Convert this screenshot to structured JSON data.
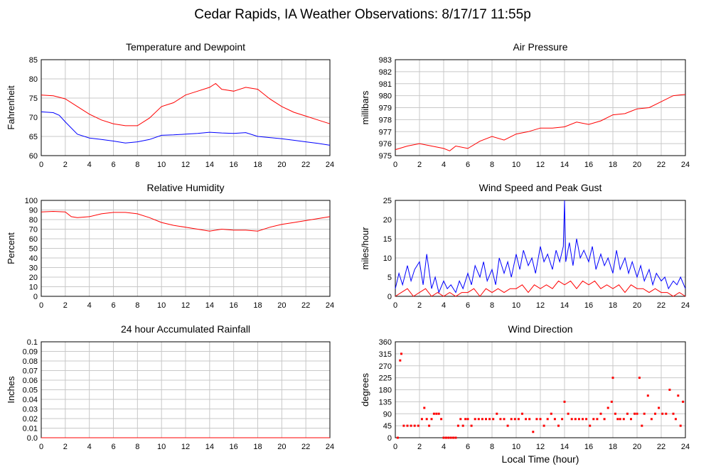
{
  "page_title": "Cedar Rapids, IA Weather Observations: 8/17/17 11:55p",
  "x_ticks": [
    "0",
    "2",
    "4",
    "6",
    "8",
    "10",
    "12",
    "14",
    "16",
    "18",
    "20",
    "22",
    "24"
  ],
  "colors": {
    "red": "#ff0000",
    "blue": "#0000ff",
    "grid": "#c8c8c8",
    "frame": "#000000"
  },
  "chart_data": [
    {
      "id": "temp",
      "type": "line",
      "title": "Temperature and Dewpoint",
      "xlabel": "",
      "ylabel": "Fahrenheit",
      "xlim": [
        0,
        24
      ],
      "ylim": [
        60,
        85
      ],
      "y_ticks": [
        "60",
        "65",
        "70",
        "75",
        "80",
        "85"
      ],
      "series": [
        {
          "color": "red",
          "x": [
            0,
            1,
            2,
            3,
            4,
            5,
            6,
            7,
            8,
            9,
            10,
            11,
            12,
            13,
            14,
            14.5,
            15,
            16,
            17,
            18,
            19,
            20,
            21,
            22,
            23,
            24
          ],
          "values": [
            75.8,
            75.6,
            74.8,
            72.8,
            70.8,
            69.3,
            68.3,
            67.8,
            67.8,
            69.8,
            72.8,
            73.8,
            75.8,
            76.8,
            77.8,
            78.8,
            77.3,
            76.8,
            77.8,
            77.3,
            74.8,
            72.8,
            71.3,
            70.3,
            69.3,
            68.3
          ]
        },
        {
          "color": "blue",
          "x": [
            0,
            1,
            1.5,
            2,
            3,
            4,
            5,
            6,
            7,
            8,
            9,
            10,
            11,
            12,
            13,
            14,
            15,
            16,
            17,
            18,
            19,
            20,
            21,
            22,
            23,
            24
          ],
          "values": [
            71.4,
            71.2,
            70.5,
            68.8,
            65.6,
            64.6,
            64.2,
            63.8,
            63.3,
            63.6,
            64.2,
            65.3,
            65.4,
            65.6,
            65.8,
            66.1,
            65.9,
            65.8,
            66.0,
            65.0,
            64.7,
            64.4,
            64.0,
            63.6,
            63.2,
            62.7
          ]
        }
      ]
    },
    {
      "id": "pressure",
      "type": "line",
      "title": "Air Pressure",
      "xlabel": "",
      "ylabel": "millibars",
      "xlim": [
        0,
        24
      ],
      "ylim": [
        975,
        983
      ],
      "y_ticks": [
        "975",
        "976",
        "977",
        "978",
        "979",
        "980",
        "981",
        "982",
        "983"
      ],
      "series": [
        {
          "color": "red",
          "x": [
            0,
            1,
            2,
            3,
            4,
            4.5,
            5,
            6,
            7,
            8,
            9,
            10,
            11,
            12,
            13,
            14,
            15,
            16,
            17,
            18,
            19,
            20,
            21,
            22,
            23,
            24
          ],
          "values": [
            975.5,
            975.8,
            976.0,
            975.8,
            975.6,
            975.4,
            975.8,
            975.6,
            976.2,
            976.6,
            976.3,
            976.8,
            977.0,
            977.3,
            977.3,
            977.4,
            977.8,
            977.6,
            977.9,
            978.4,
            978.5,
            978.9,
            979.0,
            979.5,
            980.0,
            980.1
          ]
        }
      ]
    },
    {
      "id": "rh",
      "type": "line",
      "title": "Relative Humidity",
      "xlabel": "",
      "ylabel": "Percent",
      "xlim": [
        0,
        24
      ],
      "ylim": [
        0,
        100
      ],
      "y_ticks": [
        "0",
        "10",
        "20",
        "30",
        "40",
        "50",
        "60",
        "70",
        "80",
        "90",
        "100"
      ],
      "series": [
        {
          "color": "red",
          "x": [
            0,
            1,
            2,
            2.5,
            3,
            4,
            5,
            6,
            7,
            8,
            9,
            10,
            11,
            12,
            13,
            14,
            15,
            16,
            17,
            18,
            19,
            20,
            21,
            22,
            23,
            24
          ],
          "values": [
            88,
            88.5,
            88,
            83,
            82,
            83,
            86,
            87.5,
            87.5,
            86,
            82,
            77,
            74,
            72,
            70,
            68,
            70,
            69,
            69,
            68,
            72,
            75,
            77,
            79,
            81,
            83
          ]
        }
      ]
    },
    {
      "id": "wind",
      "type": "line",
      "title": "Wind Speed and Peak Gust",
      "xlabel": "",
      "ylabel": "miles/hour",
      "xlim": [
        0,
        24
      ],
      "ylim": [
        0,
        25
      ],
      "y_ticks": [
        "0",
        "5",
        "10",
        "15",
        "20",
        "25"
      ],
      "series": [
        {
          "color": "blue",
          "x": [
            0,
            0.3,
            0.6,
            1,
            1.3,
            1.6,
            2,
            2.3,
            2.6,
            3,
            3.3,
            3.6,
            4,
            4.3,
            4.6,
            5,
            5.3,
            5.6,
            6,
            6.3,
            6.6,
            7,
            7.3,
            7.6,
            8,
            8.3,
            8.6,
            9,
            9.3,
            9.6,
            10,
            10.3,
            10.6,
            11,
            11.3,
            11.6,
            12,
            12.3,
            12.6,
            13,
            13.3,
            13.6,
            13.9,
            14,
            14.1,
            14.4,
            14.7,
            15,
            15.3,
            15.6,
            16,
            16.3,
            16.6,
            17,
            17.3,
            17.6,
            18,
            18.3,
            18.6,
            19,
            19.3,
            19.6,
            20,
            20.3,
            20.6,
            21,
            21.3,
            21.6,
            22,
            22.3,
            22.6,
            23,
            23.3,
            23.6,
            24
          ],
          "values": [
            2,
            6,
            3,
            8,
            4,
            7,
            9,
            3,
            11,
            2,
            5,
            1,
            4,
            2,
            3,
            1,
            4,
            2,
            6,
            3,
            8,
            5,
            9,
            4,
            7,
            3,
            10,
            6,
            9,
            5,
            11,
            7,
            12,
            8,
            10,
            6,
            13,
            9,
            11,
            7,
            12,
            9,
            13,
            25,
            9,
            14,
            8,
            15,
            10,
            12,
            9,
            13,
            7,
            11,
            8,
            10,
            6,
            12,
            7,
            10,
            6,
            9,
            5,
            8,
            4,
            7,
            3,
            6,
            4,
            5,
            2,
            4,
            3,
            5,
            2
          ]
        },
        {
          "color": "red",
          "x": [
            0,
            0.5,
            1,
            1.5,
            2,
            2.5,
            3,
            3.5,
            4,
            4.5,
            5,
            5.5,
            6,
            6.5,
            7,
            7.5,
            8,
            8.5,
            9,
            9.5,
            10,
            10.5,
            11,
            11.5,
            12,
            12.5,
            13,
            13.5,
            14,
            14.5,
            15,
            15.5,
            16,
            16.5,
            17,
            17.5,
            18,
            18.5,
            19,
            19.5,
            20,
            20.5,
            21,
            21.5,
            22,
            22.5,
            23,
            23.5,
            24
          ],
          "values": [
            0,
            1,
            2,
            0,
            1,
            2,
            0,
            1,
            0,
            1,
            0,
            1,
            1,
            2,
            0,
            2,
            1,
            2,
            1,
            2,
            2,
            3,
            1,
            3,
            2,
            3,
            2,
            4,
            3,
            4,
            2,
            4,
            3,
            4,
            2,
            3,
            2,
            3,
            1,
            3,
            2,
            2,
            1,
            2,
            1,
            1,
            0,
            1,
            0
          ]
        }
      ]
    },
    {
      "id": "rain",
      "type": "line",
      "title": "24 hour Accumulated Rainfall",
      "xlabel": "",
      "ylabel": "Inches",
      "xlim": [
        0,
        24
      ],
      "ylim": [
        0,
        0.1
      ],
      "y_ticks": [
        "0.0",
        "0.01",
        "0.02",
        "0.03",
        "0.04",
        "0.05",
        "0.06",
        "0.07",
        "0.08",
        "0.09",
        "0.1"
      ],
      "series": [
        {
          "color": "red",
          "x": [
            0,
            24
          ],
          "values": [
            0,
            0
          ]
        }
      ]
    },
    {
      "id": "dir",
      "type": "scatter",
      "title": "Wind Direction",
      "xlabel": "Local Time (hour)",
      "ylabel": "degrees",
      "xlim": [
        0,
        24
      ],
      "ylim": [
        0,
        360
      ],
      "y_ticks": [
        "0",
        "45",
        "90",
        "135",
        "180",
        "225",
        "270",
        "315",
        "360"
      ],
      "series": [
        {
          "color": "red",
          "x": [
            0.2,
            0.4,
            0.5,
            0.7,
            1,
            1.3,
            1.6,
            1.9,
            2.2,
            2.4,
            2.6,
            2.8,
            3,
            3.2,
            3.4,
            3.6,
            3.8,
            4,
            4.2,
            4.4,
            4.6,
            4.8,
            5,
            5.2,
            5.4,
            5.6,
            5.8,
            6,
            6.3,
            6.6,
            6.9,
            7.2,
            7.5,
            7.8,
            8.1,
            8.4,
            8.7,
            9,
            9.3,
            9.6,
            9.9,
            10.2,
            10.5,
            10.8,
            11.1,
            11.4,
            11.7,
            12,
            12.3,
            12.6,
            12.9,
            13.2,
            13.5,
            13.8,
            14,
            14.3,
            14.6,
            14.9,
            15.2,
            15.5,
            15.8,
            16.1,
            16.4,
            16.7,
            17,
            17.3,
            17.6,
            17.9,
            18,
            18.2,
            18.4,
            18.6,
            18.9,
            19.2,
            19.5,
            19.8,
            20,
            20.2,
            20.4,
            20.6,
            20.9,
            21.2,
            21.5,
            21.8,
            22.1,
            22.4,
            22.7,
            23,
            23.2,
            23.4,
            23.6,
            23.8
          ],
          "values": [
            0,
            290,
            315,
            45,
            45,
            45,
            45,
            45,
            70,
            112,
            70,
            45,
            70,
            90,
            90,
            90,
            70,
            0,
            0,
            0,
            0,
            0,
            0,
            45,
            70,
            45,
            70,
            70,
            45,
            70,
            70,
            70,
            70,
            70,
            70,
            90,
            70,
            70,
            45,
            70,
            70,
            70,
            90,
            70,
            70,
            22,
            70,
            70,
            45,
            70,
            90,
            70,
            45,
            70,
            135,
            90,
            70,
            70,
            70,
            70,
            70,
            45,
            70,
            70,
            90,
            70,
            112,
            135,
            225,
            90,
            70,
            70,
            70,
            90,
            70,
            90,
            90,
            225,
            45,
            90,
            158,
            70,
            90,
            112,
            90,
            90,
            180,
            90,
            70,
            158,
            45,
            135
          ]
        }
      ]
    }
  ]
}
